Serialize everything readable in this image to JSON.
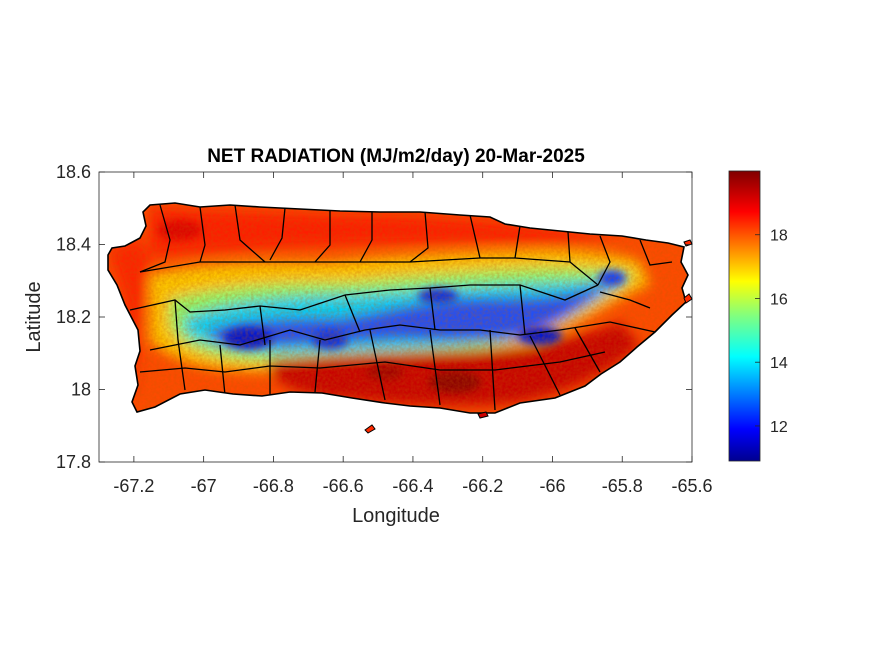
{
  "chart_data": {
    "type": "heatmap",
    "title": "NET RADIATION (MJ/m2/day) 20-Mar-2025",
    "xlabel": "Longitude",
    "ylabel": "Latitude",
    "xlim": [
      -67.3,
      -65.6
    ],
    "ylim": [
      17.8,
      18.6
    ],
    "x_ticks": [
      -67.2,
      -67,
      -66.8,
      -66.6,
      -66.4,
      -66.2,
      -66,
      -65.8,
      -65.6
    ],
    "x_tick_labels": [
      "-67.2",
      "-67",
      "-66.8",
      "-66.6",
      "-66.4",
      "-66.2",
      "-66",
      "-65.8",
      "-65.6"
    ],
    "y_ticks": [
      17.8,
      18,
      18.2,
      18.4,
      18.6
    ],
    "y_tick_labels": [
      "17.8",
      "18",
      "18.2",
      "18.4",
      "18.6"
    ],
    "colorbar": {
      "colormap": "jet",
      "range": [
        10.9,
        20
      ],
      "ticks": [
        12,
        14,
        16,
        18
      ],
      "tick_labels": [
        "12",
        "14",
        "16",
        "18"
      ]
    },
    "region": "Puerto Rico",
    "pattern": {
      "coast_and_north": "high (about 18-20)",
      "south_coast": "highest (about 19-20)",
      "central_mountains": "low (about 12-15)",
      "east_ridge": "low (about 13-15)"
    },
    "grid": false
  }
}
